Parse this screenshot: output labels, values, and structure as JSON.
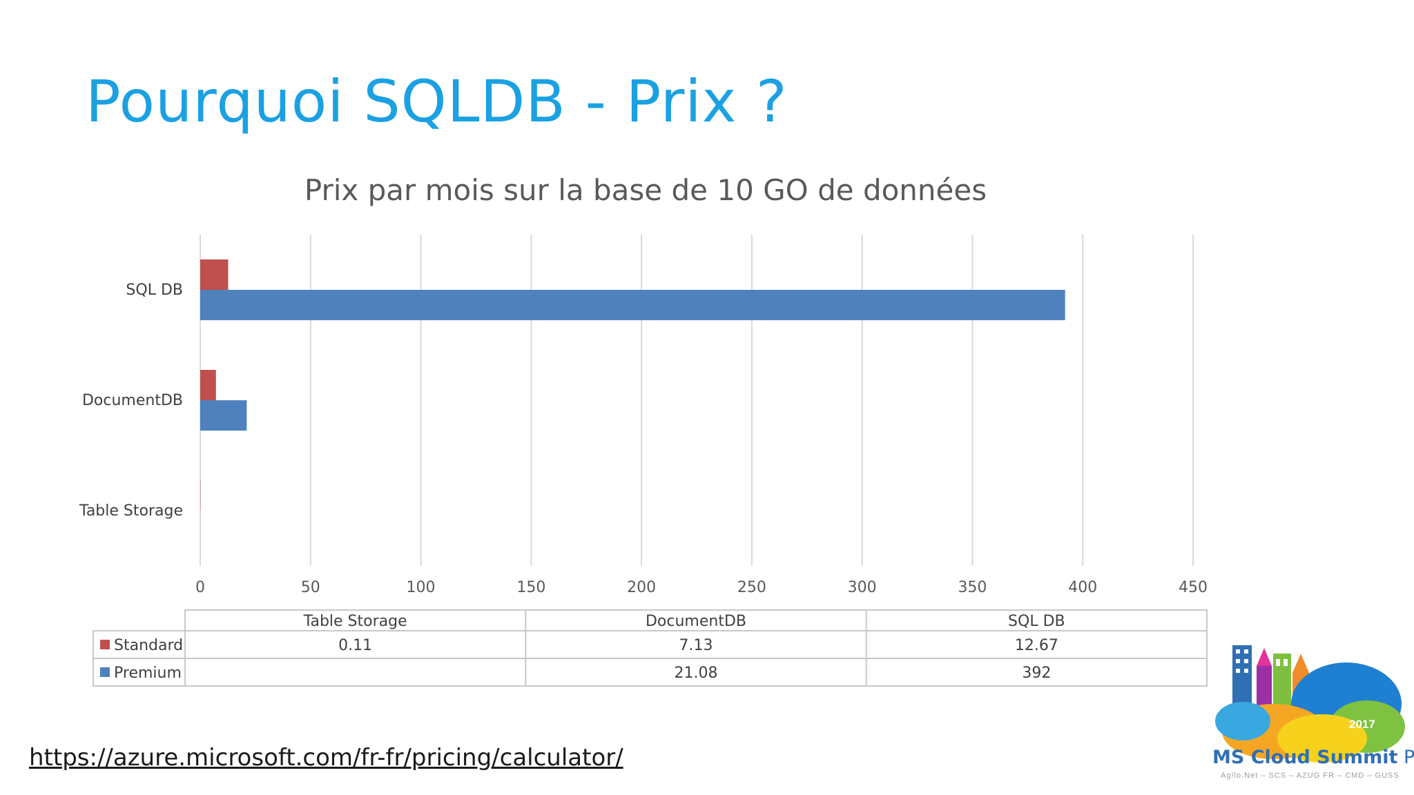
{
  "slide": {
    "title": "Pourquoi SQLDB - Prix ?",
    "footer_link": "https://azure.microsoft.com/fr-fr/pricing/calculator/"
  },
  "logo": {
    "brand_bold": "MS Cloud Summit",
    "brand_regular": " Paris",
    "year": "2017",
    "subtitle": "Ag!lo.Net – SCS – AZUG FR – CMD – GUSS"
  },
  "chart_data": {
    "type": "bar",
    "orientation": "horizontal",
    "title": "Prix par mois sur la base de 10 GO de données",
    "categories": [
      "Table Storage",
      "DocumentDB",
      "SQL DB"
    ],
    "series": [
      {
        "name": "Standard",
        "values": [
          0.11,
          7.13,
          12.67
        ],
        "color": "#c0504d"
      },
      {
        "name": "Premium",
        "values": [
          null,
          21.08,
          392
        ],
        "color": "#4f81bd"
      }
    ],
    "table_values": {
      "Standard": [
        "0.11",
        "7.13",
        "12.67"
      ],
      "Premium": [
        "",
        "21.08",
        "392"
      ]
    },
    "xlim": [
      0,
      450
    ],
    "xticks": [
      0,
      50,
      100,
      150,
      200,
      250,
      300,
      350,
      400,
      450
    ],
    "grid": true,
    "legend": "data-table"
  }
}
